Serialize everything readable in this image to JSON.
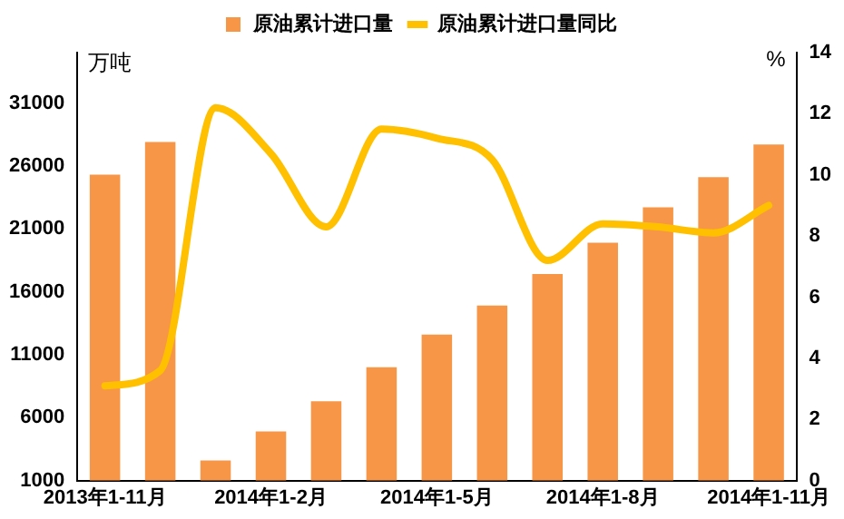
{
  "chart_data": {
    "type": "bar",
    "categories": [
      "2013年1-11月",
      null,
      null,
      "2014年1-2月",
      null,
      null,
      "2014年1-5月",
      null,
      null,
      "2014年1-8月",
      null,
      null,
      "2014年1-11月"
    ],
    "series": [
      {
        "name": "原油累计进口量",
        "color": "#f79646",
        "values": [
          25300,
          27900,
          2600,
          4900,
          7300,
          10000,
          12600,
          14900,
          17400,
          19900,
          22700,
          25100,
          27700
        ]
      },
      {
        "name": "原油累计进口量同比",
        "type": "line",
        "axis": "y2",
        "color": "#ffc000",
        "values": [
          3.1,
          3.6,
          12.2,
          10.7,
          8.3,
          11.5,
          11.2,
          10.5,
          7.2,
          8.4,
          8.3,
          8.1,
          9.0
        ]
      }
    ],
    "ylabel": "万吨",
    "y2label": "%",
    "ylim": [
      1000,
      35000
    ],
    "yticks": [
      1000,
      6000,
      11000,
      16000,
      21000,
      26000,
      31000
    ],
    "y2lim": [
      0,
      14
    ],
    "y2ticks": [
      0,
      2,
      4,
      6,
      8,
      10,
      12,
      14
    ],
    "legend": "top",
    "grid": false,
    "marker": "none"
  }
}
